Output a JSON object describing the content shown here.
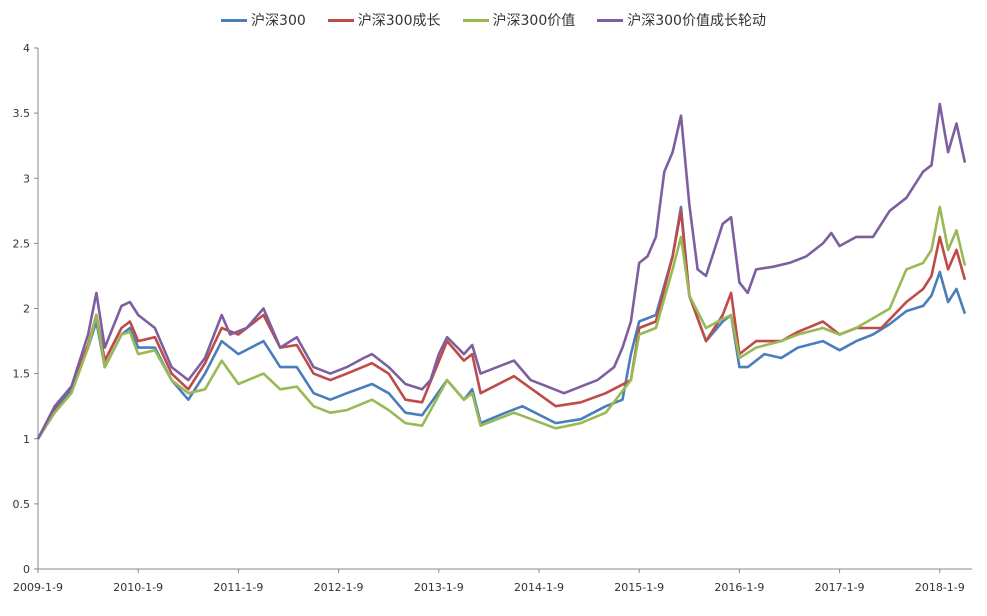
{
  "chart_data": {
    "type": "line",
    "title": "",
    "xlabel": "",
    "ylabel": "",
    "ylim": [
      0,
      4
    ],
    "yticks": [
      "0",
      "0.5",
      "1",
      "1.5",
      "2",
      "2.5",
      "3",
      "3.5",
      "4"
    ],
    "xticks": [
      "2009-1-9",
      "2010-1-9",
      "2011-1-9",
      "2012-1-9",
      "2013-1-9",
      "2014-1-9",
      "2015-1-9",
      "2016-1-9",
      "2017-1-9",
      "2018-1-9"
    ],
    "xrange": [
      "2009-01",
      "2018-04"
    ],
    "grid": false,
    "legend_position": "top",
    "series": [
      {
        "name": "沪深300",
        "color": "#4a7ebb",
        "points": [
          [
            "2009-01",
            1.0
          ],
          [
            "2009-03",
            1.22
          ],
          [
            "2009-05",
            1.38
          ],
          [
            "2009-07",
            1.7
          ],
          [
            "2009-08",
            1.9
          ],
          [
            "2009-09",
            1.55
          ],
          [
            "2009-11",
            1.8
          ],
          [
            "2009-12",
            1.85
          ],
          [
            "2010-01",
            1.7
          ],
          [
            "2010-03",
            1.7
          ],
          [
            "2010-05",
            1.45
          ],
          [
            "2010-07",
            1.3
          ],
          [
            "2010-09",
            1.5
          ],
          [
            "2010-11",
            1.75
          ],
          [
            "2011-01",
            1.65
          ],
          [
            "2011-04",
            1.75
          ],
          [
            "2011-06",
            1.55
          ],
          [
            "2011-08",
            1.55
          ],
          [
            "2011-10",
            1.35
          ],
          [
            "2011-12",
            1.3
          ],
          [
            "2012-02",
            1.35
          ],
          [
            "2012-05",
            1.42
          ],
          [
            "2012-07",
            1.35
          ],
          [
            "2012-09",
            1.2
          ],
          [
            "2012-11",
            1.18
          ],
          [
            "2013-02",
            1.45
          ],
          [
            "2013-04",
            1.3
          ],
          [
            "2013-05",
            1.38
          ],
          [
            "2013-06",
            1.12
          ],
          [
            "2013-09",
            1.2
          ],
          [
            "2013-11",
            1.25
          ],
          [
            "2014-03",
            1.12
          ],
          [
            "2014-06",
            1.15
          ],
          [
            "2014-09",
            1.25
          ],
          [
            "2014-11",
            1.3
          ],
          [
            "2014-12",
            1.65
          ],
          [
            "2015-01",
            1.9
          ],
          [
            "2015-03",
            1.95
          ],
          [
            "2015-05",
            2.4
          ],
          [
            "2015-06",
            2.78
          ],
          [
            "2015-07",
            2.1
          ],
          [
            "2015-09",
            1.75
          ],
          [
            "2015-11",
            1.9
          ],
          [
            "2015-12",
            1.95
          ],
          [
            "2016-01",
            1.55
          ],
          [
            "2016-02",
            1.55
          ],
          [
            "2016-04",
            1.65
          ],
          [
            "2016-06",
            1.62
          ],
          [
            "2016-08",
            1.7
          ],
          [
            "2016-11",
            1.75
          ],
          [
            "2017-01",
            1.68
          ],
          [
            "2017-03",
            1.75
          ],
          [
            "2017-05",
            1.8
          ],
          [
            "2017-07",
            1.88
          ],
          [
            "2017-09",
            1.98
          ],
          [
            "2017-11",
            2.02
          ],
          [
            "2017-12",
            2.1
          ],
          [
            "2018-01",
            2.28
          ],
          [
            "2018-02",
            2.05
          ],
          [
            "2018-03",
            2.15
          ],
          [
            "2018-04",
            1.96
          ]
        ]
      },
      {
        "name": "沪深300成长",
        "color": "#be4b48",
        "points": [
          [
            "2009-01",
            1.0
          ],
          [
            "2009-03",
            1.24
          ],
          [
            "2009-05",
            1.4
          ],
          [
            "2009-07",
            1.72
          ],
          [
            "2009-08",
            1.95
          ],
          [
            "2009-09",
            1.6
          ],
          [
            "2009-11",
            1.85
          ],
          [
            "2009-12",
            1.9
          ],
          [
            "2010-01",
            1.75
          ],
          [
            "2010-03",
            1.78
          ],
          [
            "2010-05",
            1.5
          ],
          [
            "2010-07",
            1.38
          ],
          [
            "2010-09",
            1.58
          ],
          [
            "2010-11",
            1.85
          ],
          [
            "2011-01",
            1.8
          ],
          [
            "2011-04",
            1.95
          ],
          [
            "2011-06",
            1.7
          ],
          [
            "2011-08",
            1.72
          ],
          [
            "2011-10",
            1.5
          ],
          [
            "2011-12",
            1.45
          ],
          [
            "2012-02",
            1.5
          ],
          [
            "2012-05",
            1.58
          ],
          [
            "2012-07",
            1.5
          ],
          [
            "2012-09",
            1.3
          ],
          [
            "2012-11",
            1.28
          ],
          [
            "2013-02",
            1.75
          ],
          [
            "2013-04",
            1.6
          ],
          [
            "2013-05",
            1.65
          ],
          [
            "2013-06",
            1.35
          ],
          [
            "2013-10",
            1.48
          ],
          [
            "2014-03",
            1.25
          ],
          [
            "2014-06",
            1.28
          ],
          [
            "2014-09",
            1.35
          ],
          [
            "2014-12",
            1.45
          ],
          [
            "2015-01",
            1.85
          ],
          [
            "2015-03",
            1.9
          ],
          [
            "2015-05",
            2.4
          ],
          [
            "2015-06",
            2.75
          ],
          [
            "2015-07",
            2.1
          ],
          [
            "2015-09",
            1.75
          ],
          [
            "2015-11",
            1.95
          ],
          [
            "2015-12",
            2.12
          ],
          [
            "2016-01",
            1.65
          ],
          [
            "2016-03",
            1.75
          ],
          [
            "2016-06",
            1.75
          ],
          [
            "2016-08",
            1.82
          ],
          [
            "2016-11",
            1.9
          ],
          [
            "2017-01",
            1.8
          ],
          [
            "2017-03",
            1.85
          ],
          [
            "2017-06",
            1.85
          ],
          [
            "2017-09",
            2.05
          ],
          [
            "2017-11",
            2.15
          ],
          [
            "2017-12",
            2.25
          ],
          [
            "2018-01",
            2.55
          ],
          [
            "2018-02",
            2.3
          ],
          [
            "2018-03",
            2.45
          ],
          [
            "2018-04",
            2.22
          ]
        ]
      },
      {
        "name": "沪深300价值",
        "color": "#98b954",
        "points": [
          [
            "2009-01",
            1.0
          ],
          [
            "2009-03",
            1.2
          ],
          [
            "2009-05",
            1.35
          ],
          [
            "2009-07",
            1.7
          ],
          [
            "2009-08",
            1.95
          ],
          [
            "2009-09",
            1.55
          ],
          [
            "2009-11",
            1.8
          ],
          [
            "2009-12",
            1.82
          ],
          [
            "2010-01",
            1.65
          ],
          [
            "2010-03",
            1.68
          ],
          [
            "2010-05",
            1.45
          ],
          [
            "2010-07",
            1.35
          ],
          [
            "2010-09",
            1.38
          ],
          [
            "2010-11",
            1.6
          ],
          [
            "2011-01",
            1.42
          ],
          [
            "2011-04",
            1.5
          ],
          [
            "2011-06",
            1.38
          ],
          [
            "2011-08",
            1.4
          ],
          [
            "2011-10",
            1.25
          ],
          [
            "2011-12",
            1.2
          ],
          [
            "2012-02",
            1.22
          ],
          [
            "2012-05",
            1.3
          ],
          [
            "2012-07",
            1.22
          ],
          [
            "2012-09",
            1.12
          ],
          [
            "2012-11",
            1.1
          ],
          [
            "2013-02",
            1.45
          ],
          [
            "2013-04",
            1.3
          ],
          [
            "2013-05",
            1.35
          ],
          [
            "2013-06",
            1.1
          ],
          [
            "2013-10",
            1.2
          ],
          [
            "2014-03",
            1.08
          ],
          [
            "2014-06",
            1.12
          ],
          [
            "2014-09",
            1.2
          ],
          [
            "2014-12",
            1.45
          ],
          [
            "2015-01",
            1.8
          ],
          [
            "2015-03",
            1.85
          ],
          [
            "2015-05",
            2.3
          ],
          [
            "2015-06",
            2.55
          ],
          [
            "2015-07",
            2.1
          ],
          [
            "2015-09",
            1.85
          ],
          [
            "2015-11",
            1.92
          ],
          [
            "2015-12",
            1.95
          ],
          [
            "2016-01",
            1.62
          ],
          [
            "2016-03",
            1.7
          ],
          [
            "2016-06",
            1.75
          ],
          [
            "2016-08",
            1.8
          ],
          [
            "2016-11",
            1.85
          ],
          [
            "2017-01",
            1.8
          ],
          [
            "2017-03",
            1.85
          ],
          [
            "2017-07",
            2.0
          ],
          [
            "2017-09",
            2.3
          ],
          [
            "2017-11",
            2.35
          ],
          [
            "2017-12",
            2.45
          ],
          [
            "2018-01",
            2.78
          ],
          [
            "2018-02",
            2.45
          ],
          [
            "2018-03",
            2.6
          ],
          [
            "2018-04",
            2.33
          ]
        ]
      },
      {
        "name": "沪深300价值成长轮动",
        "color": "#7d5fa0",
        "points": [
          [
            "2009-01",
            1.0
          ],
          [
            "2009-03",
            1.25
          ],
          [
            "2009-05",
            1.4
          ],
          [
            "2009-07",
            1.8
          ],
          [
            "2009-08",
            2.12
          ],
          [
            "2009-09",
            1.7
          ],
          [
            "2009-11",
            2.02
          ],
          [
            "2009-12",
            2.05
          ],
          [
            "2010-01",
            1.95
          ],
          [
            "2010-03",
            1.85
          ],
          [
            "2010-05",
            1.55
          ],
          [
            "2010-07",
            1.45
          ],
          [
            "2010-09",
            1.62
          ],
          [
            "2010-11",
            1.95
          ],
          [
            "2010-12",
            1.8
          ],
          [
            "2011-02",
            1.85
          ],
          [
            "2011-04",
            2.0
          ],
          [
            "2011-06",
            1.7
          ],
          [
            "2011-08",
            1.78
          ],
          [
            "2011-10",
            1.55
          ],
          [
            "2011-12",
            1.5
          ],
          [
            "2012-02",
            1.55
          ],
          [
            "2012-04",
            1.62
          ],
          [
            "2012-05",
            1.65
          ],
          [
            "2012-07",
            1.55
          ],
          [
            "2012-09",
            1.42
          ],
          [
            "2012-11",
            1.38
          ],
          [
            "2012-12",
            1.45
          ],
          [
            "2013-01",
            1.65
          ],
          [
            "2013-02",
            1.78
          ],
          [
            "2013-04",
            1.65
          ],
          [
            "2013-05",
            1.72
          ],
          [
            "2013-06",
            1.5
          ],
          [
            "2013-08",
            1.55
          ],
          [
            "2013-10",
            1.6
          ],
          [
            "2013-12",
            1.45
          ],
          [
            "2014-02",
            1.4
          ],
          [
            "2014-04",
            1.35
          ],
          [
            "2014-06",
            1.4
          ],
          [
            "2014-08",
            1.45
          ],
          [
            "2014-10",
            1.55
          ],
          [
            "2014-11",
            1.7
          ],
          [
            "2014-12",
            1.9
          ],
          [
            "2015-01",
            2.35
          ],
          [
            "2015-02",
            2.4
          ],
          [
            "2015-03",
            2.55
          ],
          [
            "2015-04",
            3.05
          ],
          [
            "2015-05",
            3.2
          ],
          [
            "2015-06",
            3.48
          ],
          [
            "2015-07",
            2.8
          ],
          [
            "2015-08",
            2.3
          ],
          [
            "2015-09",
            2.25
          ],
          [
            "2015-10",
            2.45
          ],
          [
            "2015-11",
            2.65
          ],
          [
            "2015-12",
            2.7
          ],
          [
            "2016-01",
            2.2
          ],
          [
            "2016-02",
            2.12
          ],
          [
            "2016-03",
            2.3
          ],
          [
            "2016-05",
            2.32
          ],
          [
            "2016-07",
            2.35
          ],
          [
            "2016-09",
            2.4
          ],
          [
            "2016-11",
            2.5
          ],
          [
            "2016-12",
            2.58
          ],
          [
            "2017-01",
            2.48
          ],
          [
            "2017-03",
            2.55
          ],
          [
            "2017-05",
            2.55
          ],
          [
            "2017-07",
            2.75
          ],
          [
            "2017-09",
            2.85
          ],
          [
            "2017-11",
            3.05
          ],
          [
            "2017-12",
            3.1
          ],
          [
            "2018-01",
            3.57
          ],
          [
            "2018-02",
            3.2
          ],
          [
            "2018-03",
            3.42
          ],
          [
            "2018-04",
            3.12
          ]
        ]
      }
    ]
  }
}
